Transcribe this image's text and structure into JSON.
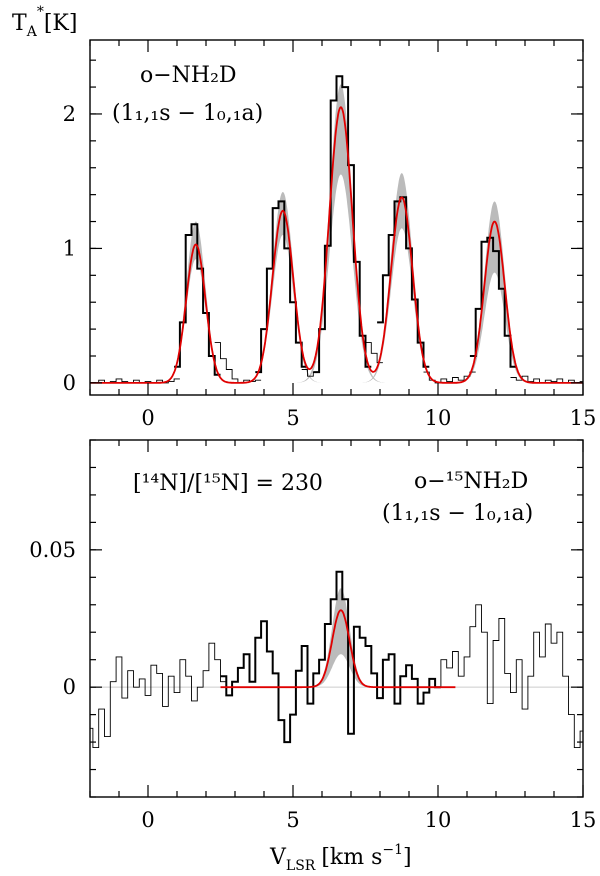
{
  "chart_data": [
    {
      "type": "line",
      "panel": "top",
      "ylabel": "T",
      "ylabel_sub": "A",
      "ylabel_sup": "*",
      "ylabel_unit": "[K]",
      "xlim": [
        -2,
        15
      ],
      "ylim": [
        -0.09,
        2.55
      ],
      "xticks": [
        0,
        5,
        10,
        15
      ],
      "yticks": [
        0,
        1,
        2
      ],
      "annotation": {
        "species": "o−NH₂D",
        "transition": "(1₁,₁s − 1₀,₁a)"
      },
      "model": {
        "color": "#e00000",
        "components": [
          {
            "center": 1.65,
            "amplitude": 1.03,
            "sigma": 0.33
          },
          {
            "center": 4.65,
            "amplitude": 1.28,
            "sigma": 0.36
          },
          {
            "center": 6.65,
            "amplitude": 2.05,
            "sigma": 0.4
          },
          {
            "center": 8.75,
            "amplitude": 1.38,
            "sigma": 0.37
          },
          {
            "center": 11.95,
            "amplitude": 1.2,
            "sigma": 0.35
          }
        ]
      },
      "band": {
        "color": "#bbbbbb",
        "components": [
          {
            "center": 1.65,
            "amplitude_high": 1.2,
            "amplitude_low": 0.92
          },
          {
            "center": 4.65,
            "amplitude_high": 1.42,
            "amplitude_low": 1.1
          },
          {
            "center": 6.65,
            "amplitude_high": 2.22,
            "amplitude_low": 1.55
          },
          {
            "center": 8.75,
            "amplitude_high": 1.56,
            "amplitude_low": 1.15
          },
          {
            "center": 11.95,
            "amplitude_high": 1.35,
            "amplitude_low": 0.82
          }
        ]
      },
      "data_segments": [
        {
          "style": "thin",
          "x": [
            -2.0,
            -1.8,
            -1.6,
            -1.4,
            -1.2,
            -1.0,
            -0.8,
            -0.6,
            -0.4,
            -0.2,
            0.0,
            0.2,
            0.4,
            0.6,
            0.8,
            1.0
          ],
          "y": [
            0.0,
            0.0,
            0.02,
            0.0,
            0.01,
            0.03,
            0.01,
            0.0,
            0.02,
            0.0,
            0.01,
            0.0,
            0.02,
            0.0,
            0.01,
            0.03
          ]
        },
        {
          "style": "thick",
          "x": [
            1.0,
            1.2,
            1.4,
            1.6,
            1.8,
            2.0,
            2.2,
            2.4
          ],
          "y": [
            0.12,
            0.45,
            1.1,
            1.18,
            0.85,
            0.52,
            0.2,
            0.06
          ]
        },
        {
          "style": "thin",
          "x": [
            2.4,
            2.6,
            2.8,
            3.0,
            3.2,
            3.4,
            3.6,
            3.8
          ],
          "y": [
            0.3,
            0.18,
            0.1,
            0.03,
            0.0,
            0.02,
            0.01,
            0.02
          ]
        },
        {
          "style": "thick",
          "x": [
            3.8,
            4.0,
            4.2,
            4.4,
            4.6,
            4.8,
            5.0,
            5.2,
            5.4
          ],
          "y": [
            0.08,
            0.4,
            0.85,
            1.3,
            1.35,
            1.0,
            0.6,
            0.3,
            0.12
          ]
        },
        {
          "style": "thin",
          "x": [
            5.4,
            5.6,
            5.8
          ],
          "y": [
            0.1,
            0.05,
            0.08
          ]
        },
        {
          "style": "thick",
          "x": [
            5.8,
            6.0,
            6.2,
            6.4,
            6.6,
            6.8,
            7.0,
            7.2,
            7.4,
            7.6
          ],
          "y": [
            0.08,
            0.4,
            1.02,
            2.1,
            2.28,
            2.2,
            1.62,
            0.9,
            0.35,
            0.12
          ]
        },
        {
          "style": "thin",
          "x": [
            7.6,
            7.8,
            8.0
          ],
          "y": [
            0.3,
            0.22,
            0.15
          ]
        },
        {
          "style": "thick",
          "x": [
            8.0,
            8.2,
            8.4,
            8.6,
            8.8,
            9.0,
            9.2,
            9.4,
            9.6
          ],
          "y": [
            0.45,
            0.8,
            1.1,
            1.35,
            1.38,
            1.0,
            0.62,
            0.3,
            0.12
          ]
        },
        {
          "style": "thin",
          "x": [
            9.6,
            9.8,
            10.0,
            10.2,
            10.4,
            10.6,
            10.8,
            11.0,
            11.2
          ],
          "y": [
            0.08,
            0.02,
            0.0,
            0.03,
            0.01,
            0.04,
            0.02,
            0.05,
            0.08
          ]
        },
        {
          "style": "thick",
          "x": [
            11.2,
            11.4,
            11.6,
            11.8,
            12.0,
            12.2,
            12.4,
            12.6
          ],
          "y": [
            0.2,
            0.55,
            1.05,
            1.08,
            0.98,
            0.7,
            0.35,
            0.12
          ]
        },
        {
          "style": "thin",
          "x": [
            12.6,
            12.8,
            13.0,
            13.2,
            13.4,
            13.6,
            13.8,
            14.0,
            14.2,
            14.4,
            14.6,
            14.8,
            15.0
          ],
          "y": [
            0.04,
            0.02,
            0.05,
            0.01,
            0.03,
            0.0,
            0.02,
            0.01,
            0.03,
            0.0,
            0.02,
            0.0,
            0.01
          ]
        }
      ]
    },
    {
      "type": "line",
      "panel": "bottom",
      "xlabel": "V",
      "xlabel_sub": "LSR",
      "xlabel_unit": "[km s",
      "xlabel_unit_sup": "−1",
      "xlabel_unit_end": "]",
      "xlim": [
        -2,
        15
      ],
      "ylim": [
        -0.04,
        0.09
      ],
      "xticks": [
        0,
        5,
        10,
        15
      ],
      "yticks": [
        0,
        0.05
      ],
      "annotation": {
        "ratio": "[¹⁴N]/[¹⁵N] = 230",
        "species": "o−¹⁵NH₂D",
        "transition": "(1₁,₁s − 1₀,₁a)"
      },
      "model": {
        "color": "#e00000",
        "x_range": [
          2.5,
          10.6
        ],
        "components": [
          {
            "center": 6.65,
            "amplitude": 0.028,
            "sigma": 0.3
          }
        ]
      },
      "band": {
        "color": "#bbbbbb",
        "components": [
          {
            "center": 6.65,
            "amplitude_high": 0.036,
            "amplitude_low": 0.012
          }
        ]
      },
      "data_segments": [
        {
          "style": "thin",
          "x": [
            -2.0,
            -1.8,
            -1.6,
            -1.4,
            -1.2,
            -1.0,
            -0.8,
            -0.6,
            -0.4,
            -0.2,
            0.0,
            0.2,
            0.4,
            0.6,
            0.8,
            1.0,
            1.2,
            1.4,
            1.6,
            1.8,
            2.0,
            2.2,
            2.4,
            2.6
          ],
          "y": [
            -0.015,
            -0.022,
            -0.008,
            -0.018,
            0.002,
            0.011,
            -0.004,
            0.006,
            0.0,
            0.003,
            -0.003,
            0.008,
            0.005,
            -0.007,
            0.004,
            -0.002,
            0.01,
            0.004,
            -0.005,
            0.0,
            0.006,
            0.016,
            0.01,
            0.002
          ]
        },
        {
          "style": "thick",
          "x": [
            2.6,
            2.8,
            3.0,
            3.2,
            3.4,
            3.6,
            3.8,
            4.0,
            4.2,
            4.4,
            4.6,
            4.8,
            5.0,
            5.2,
            5.4,
            5.6,
            5.8,
            6.0,
            6.2,
            6.4,
            6.6,
            6.8,
            7.0,
            7.2,
            7.4,
            7.6,
            7.8,
            8.0,
            8.2,
            8.4,
            8.6,
            8.8,
            9.0,
            9.2,
            9.4,
            9.6,
            9.8,
            10.0
          ],
          "y": [
            0.004,
            -0.003,
            0.002,
            0.007,
            0.012,
            0.002,
            0.018,
            0.024,
            0.013,
            0.005,
            -0.012,
            -0.02,
            -0.01,
            0.006,
            0.015,
            -0.006,
            0.005,
            0.01,
            0.023,
            0.032,
            0.042,
            0.032,
            -0.017,
            0.022,
            0.018,
            0.015,
            0.005,
            -0.004,
            0.01,
            0.012,
            -0.006,
            0.004,
            0.008,
            0.003,
            -0.006,
            -0.002,
            0.003,
            0.0
          ]
        },
        {
          "style": "thin",
          "x": [
            10.0,
            10.2,
            10.4,
            10.6,
            10.8,
            11.0,
            11.2,
            11.4,
            11.6,
            11.8,
            12.0,
            12.2,
            12.4,
            12.6,
            12.8,
            13.0,
            13.2,
            13.4,
            13.6,
            13.8,
            14.0,
            14.2,
            14.4,
            14.6,
            14.8,
            15.0
          ],
          "y": [
            0.0,
            0.01,
            0.007,
            0.013,
            0.004,
            0.011,
            0.022,
            0.03,
            0.02,
            -0.006,
            0.017,
            0.025,
            0.005,
            -0.002,
            0.01,
            -0.008,
            0.004,
            0.02,
            0.011,
            0.023,
            0.016,
            0.02,
            0.004,
            -0.01,
            -0.022,
            -0.016
          ]
        }
      ]
    }
  ]
}
